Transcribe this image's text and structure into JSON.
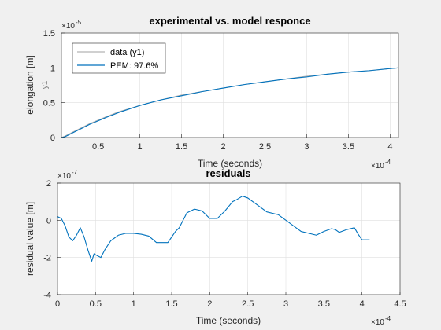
{
  "figure": {
    "background": "#f0f0f0",
    "axes_background": "#ffffff",
    "grid_color": "#dfdfdf",
    "axis_color": "#262626"
  },
  "chart_data": [
    {
      "type": "line",
      "title": "experimental vs. model responce",
      "xlabel": "Time (seconds)",
      "ylabel": "elongation [m]",
      "ylabel_secondary": "y1",
      "x_exponent_label": "×10",
      "x_exponent_power": "-4",
      "y_exponent_label": "×10",
      "y_exponent_power": "-5",
      "x_scale": 0.0001,
      "y_scale": 1e-05,
      "xlim": [
        0.06,
        4.1
      ],
      "ylim": [
        0,
        1.5
      ],
      "xticks": [
        0.5,
        1,
        1.5,
        2,
        2.5,
        3,
        3.5,
        4
      ],
      "xtick_labels": [
        "0.5",
        "1",
        "1.5",
        "2",
        "2.5",
        "3",
        "3.5",
        "4"
      ],
      "yticks": [
        0,
        0.5,
        1,
        1.5
      ],
      "ytick_labels": [
        "0",
        "0.5",
        "1",
        "1.5"
      ],
      "grid": true,
      "legend": {
        "placement": "top-left",
        "entries": [
          "data (y1)",
          "PEM: 97.6%"
        ]
      },
      "series": [
        {
          "name": "data (y1)",
          "color": "#b3b3b3",
          "x": [
            0.06,
            0.1,
            0.15,
            0.2,
            0.3,
            0.4,
            0.5,
            0.6,
            0.75,
            1.0,
            1.25,
            1.5,
            1.75,
            2.0,
            2.25,
            2.5,
            2.75,
            3.0,
            3.25,
            3.5,
            3.75,
            4.0,
            4.1
          ],
          "y": [
            0.0,
            0.02,
            0.05,
            0.08,
            0.14,
            0.2,
            0.25,
            0.3,
            0.37,
            0.46,
            0.54,
            0.61,
            0.66,
            0.71,
            0.76,
            0.8,
            0.84,
            0.88,
            0.91,
            0.94,
            0.96,
            0.99,
            1.0
          ]
        },
        {
          "name": "PEM: 97.6%",
          "color": "#0072bd",
          "x": [
            0.06,
            0.1,
            0.15,
            0.2,
            0.3,
            0.4,
            0.5,
            0.6,
            0.75,
            1.0,
            1.25,
            1.5,
            1.75,
            2.0,
            2.25,
            2.5,
            2.75,
            3.0,
            3.25,
            3.5,
            3.75,
            4.0,
            4.1
          ],
          "y": [
            0.0,
            0.01,
            0.04,
            0.07,
            0.13,
            0.19,
            0.24,
            0.29,
            0.36,
            0.46,
            0.54,
            0.6,
            0.66,
            0.71,
            0.76,
            0.8,
            0.84,
            0.87,
            0.91,
            0.94,
            0.96,
            0.99,
            1.0
          ]
        }
      ]
    },
    {
      "type": "line",
      "title": "residuals",
      "xlabel": "Time (seconds)",
      "ylabel": "residual value [m]",
      "x_exponent_label": "×10",
      "x_exponent_power": "-4",
      "y_exponent_label": "×10",
      "y_exponent_power": "-7",
      "x_scale": 0.0001,
      "y_scale": 1e-07,
      "xlim": [
        0,
        4.5
      ],
      "ylim": [
        -4,
        2
      ],
      "xticks": [
        0,
        0.5,
        1,
        1.5,
        2,
        2.5,
        3,
        3.5,
        4,
        4.5
      ],
      "xtick_labels": [
        "0",
        "0.5",
        "1",
        "1.5",
        "2",
        "2.5",
        "3",
        "3.5",
        "4",
        "4.5"
      ],
      "yticks": [
        -4,
        -2,
        0,
        2
      ],
      "ytick_labels": [
        "-4",
        "-2",
        "0",
        "2"
      ],
      "grid": true,
      "series": [
        {
          "color": "#0072bd",
          "x": [
            0.0,
            0.05,
            0.1,
            0.15,
            0.2,
            0.25,
            0.3,
            0.35,
            0.4,
            0.45,
            0.48,
            0.52,
            0.57,
            0.62,
            0.7,
            0.8,
            0.9,
            1.0,
            1.1,
            1.2,
            1.3,
            1.35,
            1.45,
            1.55,
            1.6,
            1.7,
            1.8,
            1.9,
            2.0,
            2.1,
            2.2,
            2.3,
            2.35,
            2.43,
            2.5,
            2.6,
            2.75,
            2.9,
            3.0,
            3.1,
            3.2,
            3.3,
            3.4,
            3.5,
            3.6,
            3.65,
            3.7,
            3.8,
            3.9,
            3.95,
            4.0,
            4.1
          ],
          "y": [
            0.2,
            0.1,
            -0.3,
            -0.9,
            -1.1,
            -0.8,
            -0.4,
            -0.9,
            -1.6,
            -2.2,
            -1.8,
            -1.9,
            -2.0,
            -1.6,
            -1.1,
            -0.8,
            -0.7,
            -0.7,
            -0.75,
            -0.85,
            -1.2,
            -1.2,
            -1.2,
            -0.6,
            -0.4,
            0.4,
            0.6,
            0.5,
            0.1,
            0.1,
            0.5,
            1.0,
            1.1,
            1.3,
            1.2,
            0.9,
            0.45,
            0.3,
            0.0,
            -0.3,
            -0.6,
            -0.7,
            -0.8,
            -0.6,
            -0.45,
            -0.5,
            -0.65,
            -0.5,
            -0.4,
            -0.75,
            -1.05,
            -1.05
          ]
        }
      ]
    }
  ]
}
